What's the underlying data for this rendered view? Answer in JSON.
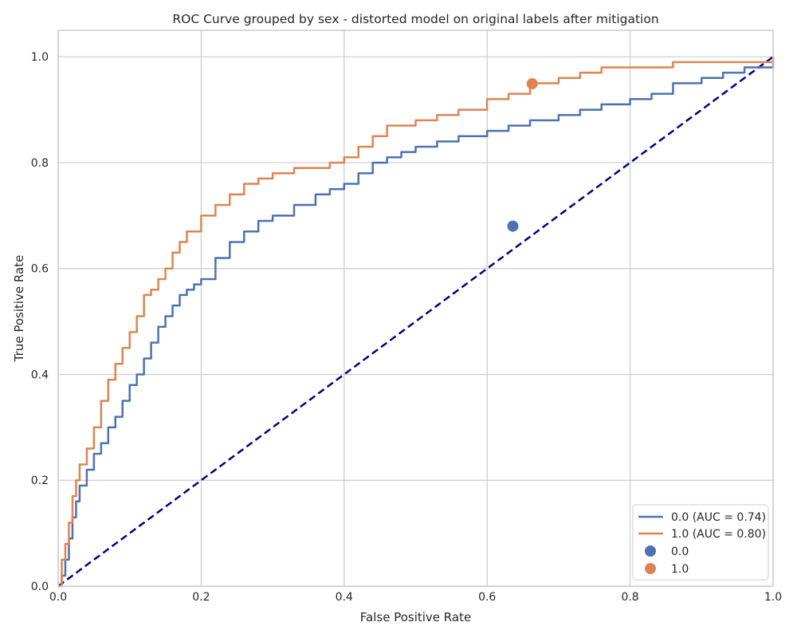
{
  "chart_data": {
    "type": "line",
    "title": "ROC Curve grouped by sex - distorted model on original labels after mitigation",
    "xlabel": "False Positive Rate",
    "ylabel": "True Positive Rate",
    "xlim": [
      0.0,
      1.0
    ],
    "ylim": [
      0.0,
      1.05
    ],
    "x_ticks": [
      "0.0",
      "0.2",
      "0.4",
      "0.6",
      "0.8",
      "1.0"
    ],
    "y_ticks": [
      "0.0",
      "0.2",
      "0.4",
      "0.6",
      "0.8",
      "1.0"
    ],
    "grid": true,
    "legend_position": "lower-right",
    "series": [
      {
        "name": "0.0 (AUC = 0.74)",
        "color": "#4c72b0",
        "x": [
          0.0,
          0.005,
          0.01,
          0.015,
          0.02,
          0.025,
          0.03,
          0.04,
          0.05,
          0.06,
          0.07,
          0.08,
          0.09,
          0.1,
          0.11,
          0.12,
          0.13,
          0.14,
          0.15,
          0.16,
          0.17,
          0.18,
          0.19,
          0.2,
          0.22,
          0.24,
          0.26,
          0.28,
          0.3,
          0.33,
          0.36,
          0.38,
          0.4,
          0.42,
          0.44,
          0.46,
          0.48,
          0.5,
          0.53,
          0.56,
          0.6,
          0.63,
          0.66,
          0.7,
          0.73,
          0.76,
          0.8,
          0.83,
          0.86,
          0.9,
          0.93,
          0.96,
          1.0
        ],
        "y": [
          0.0,
          0.02,
          0.05,
          0.09,
          0.13,
          0.16,
          0.19,
          0.22,
          0.25,
          0.27,
          0.3,
          0.32,
          0.35,
          0.38,
          0.4,
          0.43,
          0.46,
          0.49,
          0.51,
          0.53,
          0.55,
          0.56,
          0.57,
          0.58,
          0.62,
          0.65,
          0.67,
          0.69,
          0.7,
          0.72,
          0.74,
          0.75,
          0.76,
          0.78,
          0.8,
          0.81,
          0.82,
          0.83,
          0.84,
          0.85,
          0.86,
          0.87,
          0.88,
          0.89,
          0.9,
          0.91,
          0.92,
          0.93,
          0.95,
          0.96,
          0.97,
          0.98,
          1.0
        ]
      },
      {
        "name": "1.0 (AUC = 0.80)",
        "color": "#dd8452",
        "x": [
          0.0,
          0.005,
          0.01,
          0.015,
          0.02,
          0.025,
          0.03,
          0.04,
          0.05,
          0.06,
          0.07,
          0.08,
          0.09,
          0.1,
          0.11,
          0.12,
          0.13,
          0.14,
          0.15,
          0.16,
          0.17,
          0.18,
          0.2,
          0.22,
          0.24,
          0.26,
          0.28,
          0.3,
          0.33,
          0.36,
          0.38,
          0.4,
          0.42,
          0.44,
          0.46,
          0.48,
          0.5,
          0.53,
          0.56,
          0.6,
          0.63,
          0.66,
          0.7,
          0.73,
          0.76,
          0.8,
          0.83,
          0.86,
          0.9,
          0.93,
          0.96,
          1.0
        ],
        "y": [
          0.0,
          0.05,
          0.08,
          0.12,
          0.17,
          0.2,
          0.23,
          0.26,
          0.3,
          0.35,
          0.39,
          0.42,
          0.45,
          0.48,
          0.51,
          0.55,
          0.56,
          0.58,
          0.6,
          0.63,
          0.65,
          0.67,
          0.7,
          0.72,
          0.74,
          0.76,
          0.77,
          0.78,
          0.79,
          0.79,
          0.8,
          0.81,
          0.83,
          0.85,
          0.87,
          0.87,
          0.88,
          0.89,
          0.9,
          0.92,
          0.93,
          0.95,
          0.96,
          0.97,
          0.98,
          0.98,
          0.98,
          0.99,
          0.99,
          0.99,
          0.99,
          1.0
        ]
      }
    ],
    "reference_line": {
      "x": [
        0.0,
        1.0
      ],
      "y": [
        0.0,
        1.0
      ],
      "color": "#000080",
      "style": "dashed"
    },
    "points": [
      {
        "name": "0.0",
        "x": 0.636,
        "y": 0.68,
        "color": "#4c72b0"
      },
      {
        "name": "1.0",
        "x": 0.663,
        "y": 0.949,
        "color": "#dd8452"
      }
    ]
  }
}
